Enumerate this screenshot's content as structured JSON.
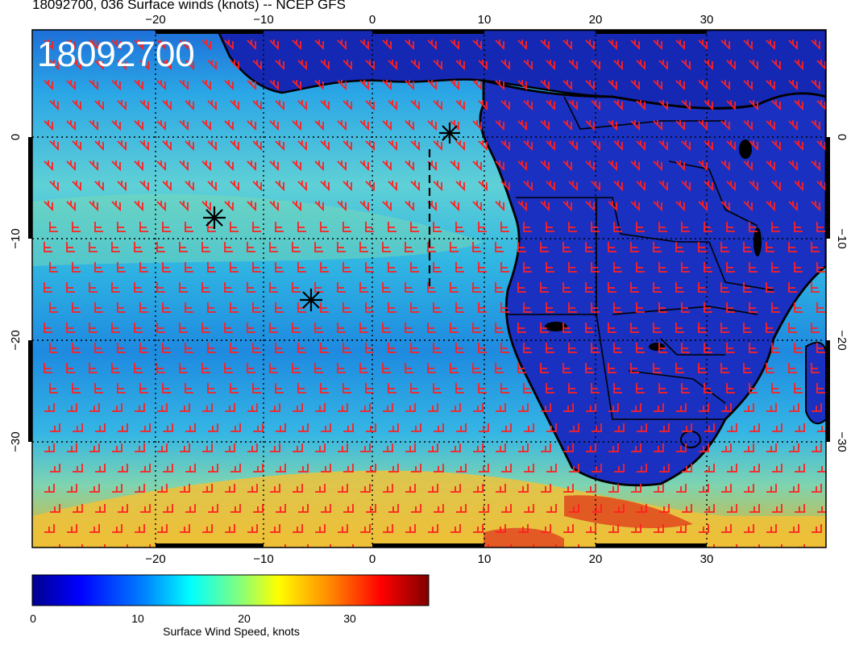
{
  "title": "18092700, 036 Surface winds (knots) -- NCEP GFS",
  "stamp": "18092700",
  "map": {
    "x_ticks": [
      "−20",
      "−10",
      "0",
      "10",
      "20",
      "30"
    ],
    "y_ticks": [
      "0",
      "−10",
      "−20",
      "−30"
    ],
    "storm_markers": 3
  },
  "colorbar": {
    "label": "Surface Wind Speed, knots",
    "ticks": [
      "0",
      "10",
      "20",
      "30"
    ],
    "colors": [
      "#00008f",
      "#0000ff",
      "#0080ff",
      "#00ffff",
      "#80ff80",
      "#ffff00",
      "#ff8000",
      "#ff0000",
      "#800000"
    ]
  },
  "colors": {
    "barb": "#ff2020",
    "ocean_base": "#38b4e8",
    "land_base": "#1428b4"
  }
}
